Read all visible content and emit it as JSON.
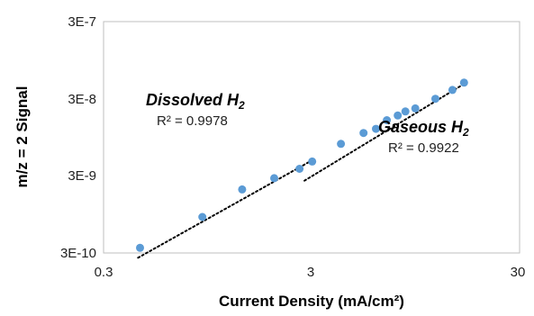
{
  "chart_data": {
    "type": "scatter",
    "xlabel": "Current Density (mA/cm²)",
    "ylabel": "m/z = 2 Signal",
    "xscale": "log",
    "yscale": "log",
    "xlim": [
      0.3,
      30
    ],
    "ylim": [
      3e-10,
      3e-07
    ],
    "x_ticks": [
      "0.3",
      "3",
      "30"
    ],
    "y_ticks": [
      "3E-10",
      "3E-9",
      "3E-8",
      "3E-7"
    ],
    "x_tick_values": [
      0.3,
      3,
      30
    ],
    "y_tick_values": [
      3e-10,
      3e-09,
      3e-08,
      3e-07
    ],
    "grid": false,
    "marker_color": "#5b9bd5",
    "trendline_color": "#000000",
    "points": [
      {
        "x": 0.45,
        "y": 3.5e-10
      },
      {
        "x": 0.9,
        "y": 8.8e-10
      },
      {
        "x": 1.4,
        "y": 2e-09
      },
      {
        "x": 2.0,
        "y": 2.8e-09
      },
      {
        "x": 2.65,
        "y": 3.7e-09
      },
      {
        "x": 3.05,
        "y": 4.6e-09
      },
      {
        "x": 4.2,
        "y": 7.8e-09
      },
      {
        "x": 5.4,
        "y": 1.08e-08
      },
      {
        "x": 6.2,
        "y": 1.22e-08
      },
      {
        "x": 7.0,
        "y": 1.58e-08
      },
      {
        "x": 7.9,
        "y": 1.82e-08
      },
      {
        "x": 8.6,
        "y": 2.05e-08
      },
      {
        "x": 9.6,
        "y": 2.25e-08
      },
      {
        "x": 12.0,
        "y": 3e-08
      },
      {
        "x": 14.5,
        "y": 3.9e-08
      },
      {
        "x": 16.5,
        "y": 4.85e-08
      }
    ],
    "trendlines": [
      {
        "type": "power",
        "x": [
          0.44,
          3.1
        ],
        "y": [
          2.6e-10,
          4.9e-09
        ]
      },
      {
        "type": "power",
        "x": [
          2.8,
          17.0
        ],
        "y": [
          2.6e-09,
          4.9e-08
        ]
      }
    ],
    "annotations": [
      {
        "label": "Dissolved H",
        "subscript": "2",
        "r2": "R² = 0.9978"
      },
      {
        "label": "Gaseous H",
        "subscript": "2",
        "r2": "R² = 0.9922"
      }
    ]
  }
}
